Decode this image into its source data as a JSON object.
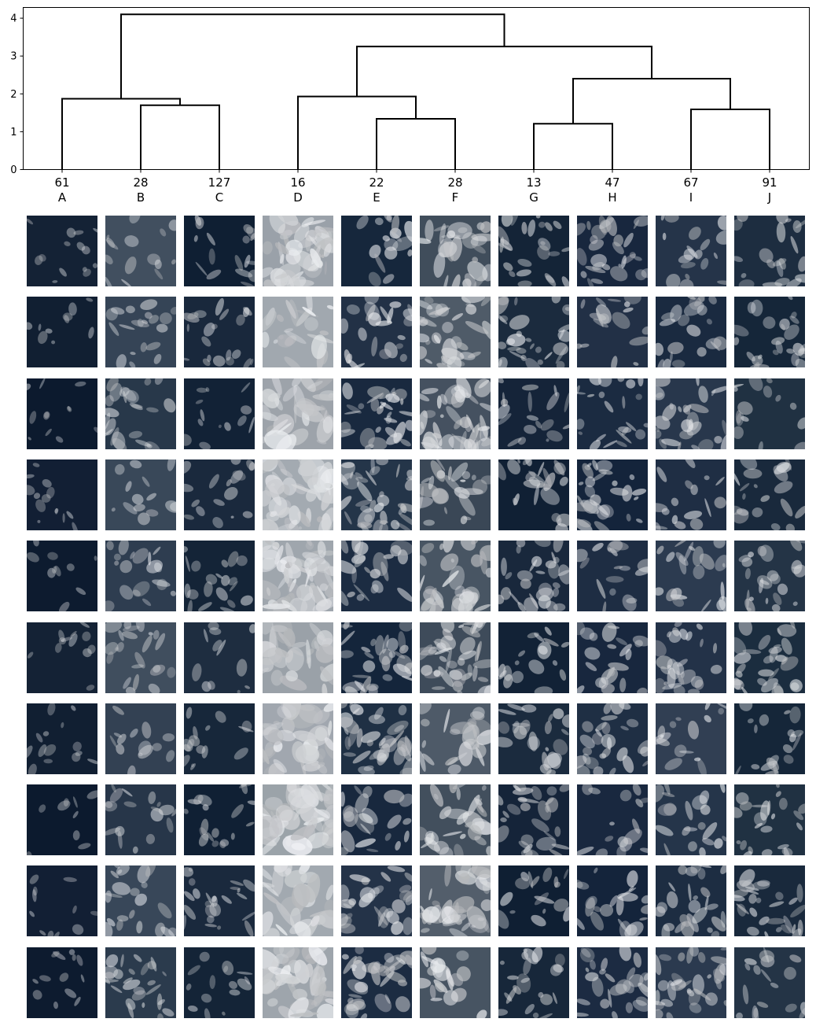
{
  "chart_data": {
    "type": "dendrogram",
    "y_ticks": [
      "0",
      "1",
      "2",
      "3",
      "4"
    ],
    "ylim": [
      0,
      4.3
    ],
    "leaves": [
      {
        "count": "61",
        "label": "A"
      },
      {
        "count": "28",
        "label": "B"
      },
      {
        "count": "127",
        "label": "C"
      },
      {
        "count": "16",
        "label": "D"
      },
      {
        "count": "22",
        "label": "E"
      },
      {
        "count": "28",
        "label": "F"
      },
      {
        "count": "13",
        "label": "G"
      },
      {
        "count": "47",
        "label": "H"
      },
      {
        "count": "67",
        "label": "I"
      },
      {
        "count": "91",
        "label": "J"
      }
    ],
    "merges": [
      {
        "left": 6,
        "right": 7,
        "height": 1.21
      },
      {
        "left": 4,
        "right": 5,
        "height": 1.34
      },
      {
        "left": 8,
        "right": 9,
        "height": 1.59
      },
      {
        "left": 1,
        "right": 2,
        "height": 1.7
      },
      {
        "left": 0,
        "right": "B+C",
        "height": 1.87
      },
      {
        "left": 3,
        "right": "E+F",
        "height": 1.93
      },
      {
        "left": "G+H",
        "right": "I+J",
        "height": 2.4
      },
      {
        "left": "D+E+F",
        "right": "G+H+I+J",
        "height": 3.25
      },
      {
        "left": "A+B+C",
        "right": "D..J",
        "height": 4.1
      }
    ]
  },
  "image_grid": {
    "rows": 10,
    "columns": [
      "A",
      "B",
      "C",
      "D",
      "E",
      "F",
      "G",
      "H",
      "I",
      "J"
    ],
    "content": "satellite cloud image samples per cluster",
    "palette": {
      "ocean_dark": "#0c1a2e",
      "ocean": "#1a2a40",
      "cloud": "#dcdfe3",
      "haze": "#8b929a"
    }
  }
}
